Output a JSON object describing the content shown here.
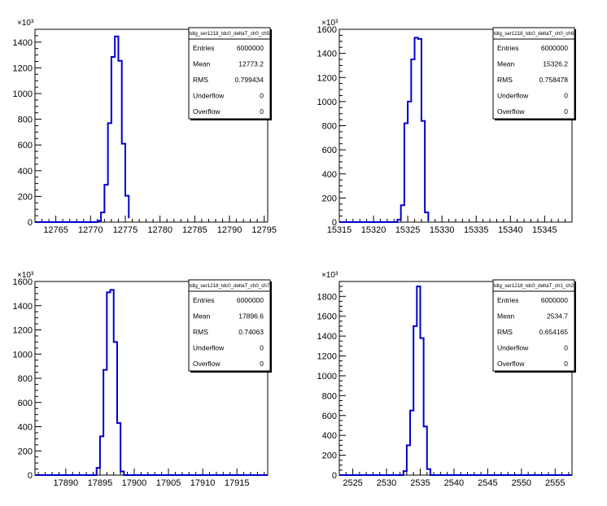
{
  "chart_data": [
    {
      "type": "histogram",
      "stats": {
        "title": "tdig_ser1218_tdc0_deltaT_ch0_ch5",
        "rows": [
          {
            "label": "Entries",
            "value": "6000000"
          },
          {
            "label": "Mean",
            "value": "12773.2"
          },
          {
            "label": "RMS",
            "value": "0.799434"
          },
          {
            "label": "Underflow",
            "value": "0"
          },
          {
            "label": "Overflow",
            "value": "0"
          }
        ]
      },
      "y_multiplier": "×10³",
      "xlim": [
        12762,
        12795.5
      ],
      "ylim": [
        0,
        1500
      ],
      "x_ticks": [
        12765,
        12770,
        12775,
        12780,
        12785,
        12790,
        12795
      ],
      "y_ticks": [
        0,
        200,
        400,
        600,
        800,
        1000,
        1200,
        1400
      ],
      "bins": {
        "edges": [
          12771.0,
          12771.5,
          12772.0,
          12772.5,
          12773.0,
          12773.5,
          12774.0,
          12774.5,
          12775.0,
          12775.5
        ],
        "counts": [
          10,
          75,
          290,
          770,
          1285,
          1445,
          1255,
          610,
          205,
          30
        ]
      }
    },
    {
      "type": "histogram",
      "stats": {
        "title": "tdig_ser1218_tdc0_deltaT_ch0_ch6",
        "rows": [
          {
            "label": "Entries",
            "value": "6000000"
          },
          {
            "label": "Mean",
            "value": "15326.2"
          },
          {
            "label": "RMS",
            "value": "0.758478"
          },
          {
            "label": "Underflow",
            "value": "0"
          },
          {
            "label": "Overflow",
            "value": "0"
          }
        ]
      },
      "y_multiplier": "×10³",
      "xlim": [
        15315,
        15349
      ],
      "ylim": [
        0,
        1600
      ],
      "x_ticks": [
        15315,
        15320,
        15325,
        15330,
        15335,
        15340,
        15345
      ],
      "y_ticks": [
        0,
        200,
        400,
        600,
        800,
        1000,
        1200,
        1400,
        1600
      ],
      "bins": {
        "edges": [
          15323.5,
          15324.0,
          15324.5,
          15325.0,
          15325.5,
          15326.0,
          15326.5,
          15327.0,
          15327.5,
          15328.0
        ],
        "counts": [
          20,
          140,
          820,
          1000,
          1350,
          1530,
          1520,
          840,
          80,
          10
        ]
      }
    },
    {
      "type": "histogram",
      "stats": {
        "title": "tdig_ser1218_tdc0_deltaT_ch0_ch7",
        "rows": [
          {
            "label": "Entries",
            "value": "6000000"
          },
          {
            "label": "Mean",
            "value": "17896.6"
          },
          {
            "label": "RMS",
            "value": "0.74063"
          },
          {
            "label": "Underflow",
            "value": "0"
          },
          {
            "label": "Overflow",
            "value": "0"
          }
        ]
      },
      "y_multiplier": "×10³",
      "xlim": [
        17885.5,
        17919.5
      ],
      "ylim": [
        0,
        1600
      ],
      "x_ticks": [
        17890,
        17895,
        17900,
        17905,
        17910,
        17915
      ],
      "y_ticks": [
        0,
        200,
        400,
        600,
        800,
        1000,
        1200,
        1400,
        1600
      ],
      "bins": {
        "edges": [
          17894.5,
          17895.0,
          17895.5,
          17896.0,
          17896.5,
          17897.0,
          17897.5,
          17898.0,
          17898.5
        ],
        "counts": [
          60,
          320,
          870,
          1510,
          1530,
          1100,
          430,
          30
        ]
      }
    },
    {
      "type": "histogram",
      "stats": {
        "title": "tdig_ser1218_tdc0_deltaT_ch1_ch2",
        "rows": [
          {
            "label": "Entries",
            "value": "6000000"
          },
          {
            "label": "Mean",
            "value": "2534.7"
          },
          {
            "label": "RMS",
            "value": "0.654165"
          },
          {
            "label": "Underflow",
            "value": "0"
          },
          {
            "label": "Overflow",
            "value": "0"
          }
        ]
      },
      "y_multiplier": "×10³",
      "xlim": [
        2523,
        2557.5
      ],
      "ylim": [
        0,
        1950
      ],
      "x_ticks": [
        2525,
        2530,
        2535,
        2540,
        2545,
        2550,
        2555
      ],
      "y_ticks": [
        0,
        200,
        400,
        600,
        800,
        1000,
        1200,
        1400,
        1600,
        1800
      ],
      "bins": {
        "edges": [
          2532.5,
          2533.0,
          2533.5,
          2534.0,
          2534.5,
          2535.0,
          2535.5,
          2536.0,
          2536.5
        ],
        "counts": [
          40,
          300,
          650,
          1500,
          1900,
          1380,
          490,
          60
        ]
      }
    }
  ],
  "colors": {
    "line": "#0000cc",
    "axis": "#000000",
    "frame": "#000000"
  }
}
